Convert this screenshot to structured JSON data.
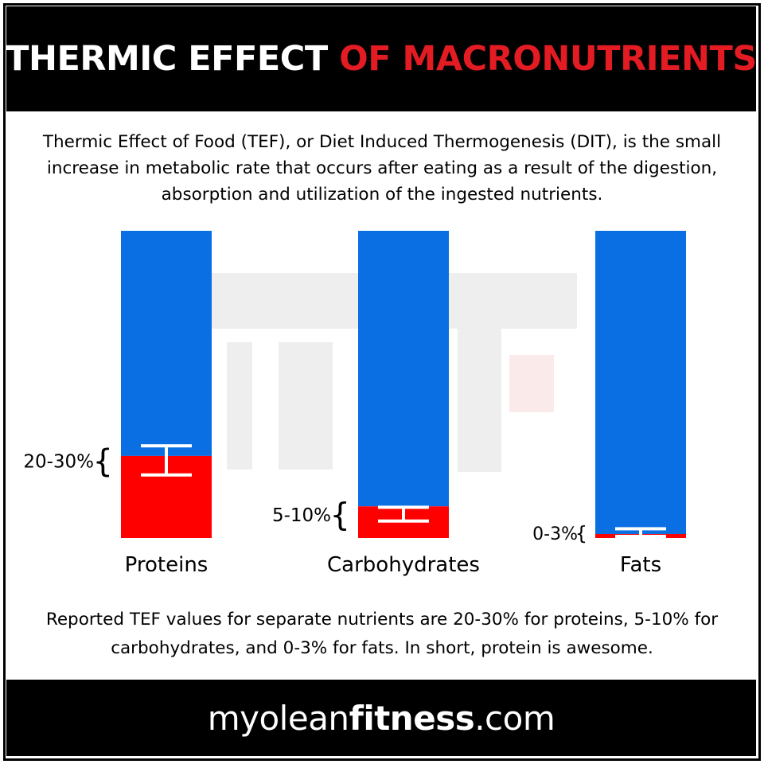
{
  "header": {
    "title_part1": "THERMIC EFFECT ",
    "title_part2": "OF MACRONUTRIENTS"
  },
  "intro_text": "Thermic Effect of Food (TEF), or Diet Induced Thermogenesis (DIT), is the small increase in metabolic rate that occurs after eating as a result of the digestion, absorption and utilization of the ingested nutrients.",
  "summary_text": "Reported TEF values for separate nutrients are 20-30% for proteins, 5-10% for carbohydrates, and 0-3% for fats. In short, protein is awesome.",
  "footer": {
    "site_part1": "myolean",
    "site_part2": "fitness",
    "site_part3": ".com"
  },
  "colors": {
    "bar_total": "#0a6fe3",
    "bar_tef": "#ff0000",
    "accent": "#e31b23",
    "watermark": "#eeeeee"
  },
  "chart_data": {
    "type": "bar",
    "stacked": true,
    "categories": [
      "Proteins",
      "Carbohydrates",
      "Fats"
    ],
    "ylim": [
      0,
      100
    ],
    "grid": false,
    "series": [
      {
        "values": [
          26.7,
          10.3,
          1.3
        ],
        "color": "#ff0000"
      },
      {
        "values": [
          73.3,
          89.7,
          98.7
        ],
        "color": "#0a6fe3"
      }
    ],
    "error_ranges": [
      [
        20,
        30
      ],
      [
        5,
        10
      ],
      [
        0,
        3
      ]
    ],
    "range_labels": [
      "20-30%",
      "5-10%",
      "0-3%"
    ]
  }
}
